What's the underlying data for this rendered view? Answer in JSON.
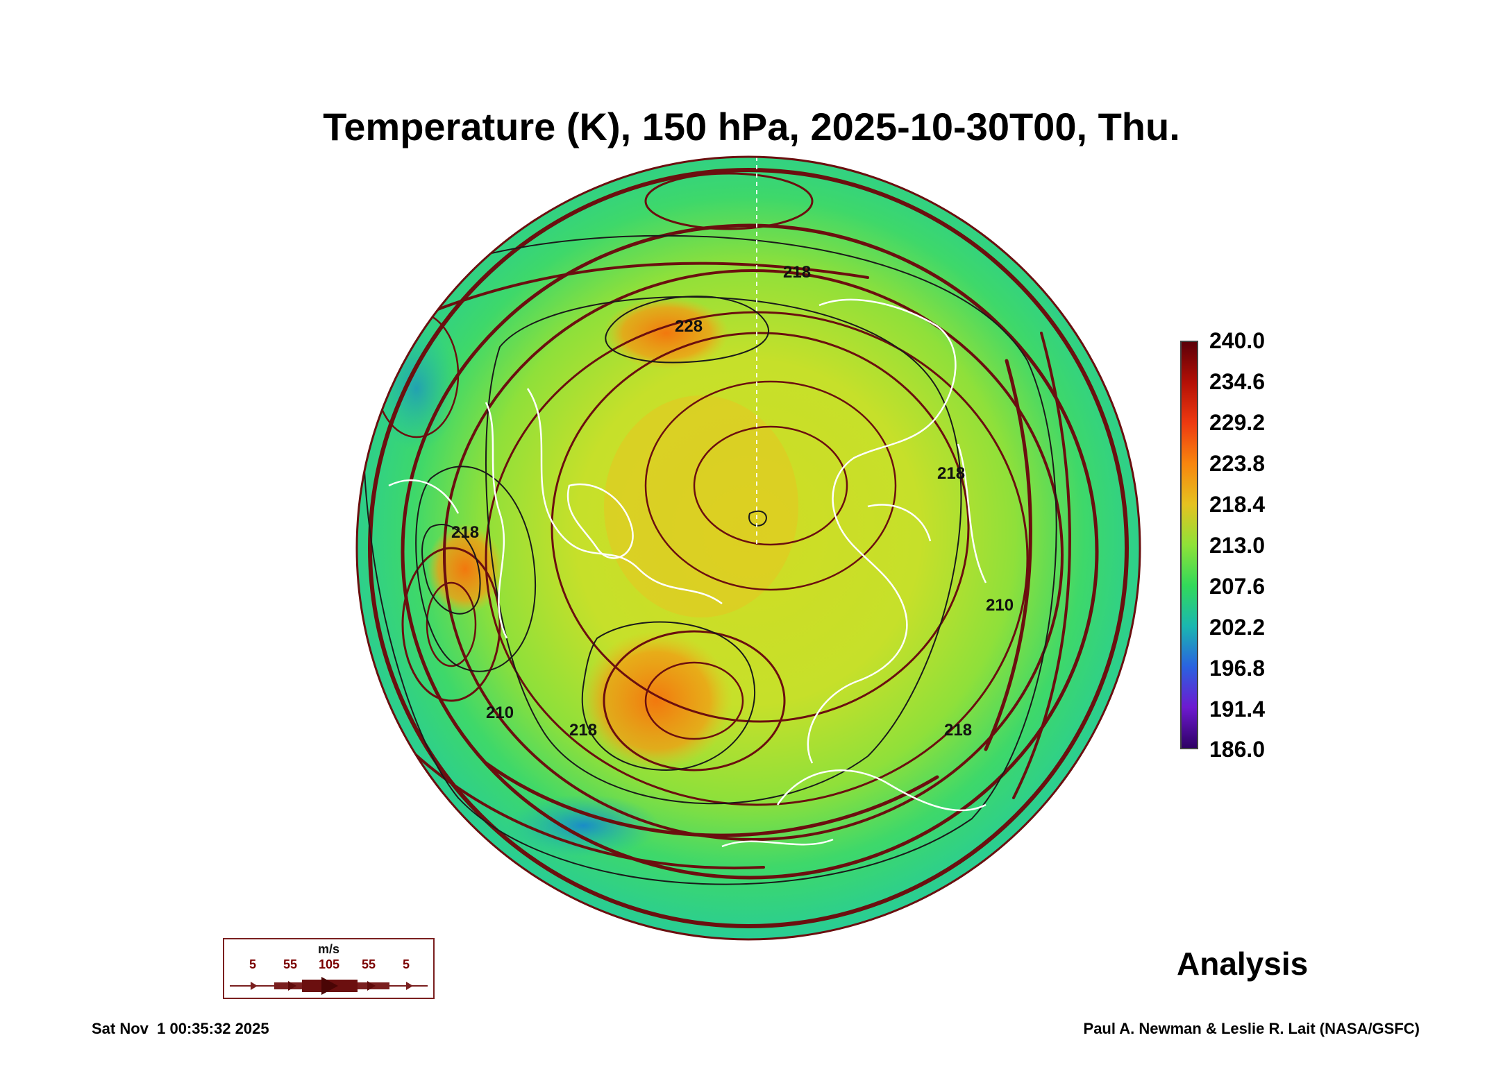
{
  "title": "Temperature (K), 150 hPa, 2025-10-30T00, Thu.",
  "colorbar": {
    "labels": [
      "240.0",
      "234.6",
      "229.2",
      "223.8",
      "218.4",
      "213.0",
      "207.6",
      "202.2",
      "196.8",
      "191.4",
      "186.0"
    ],
    "max": 240.0,
    "min": 186.0
  },
  "contour_labels": {
    "a": "218",
    "b": "228",
    "c": "218",
    "d": "210",
    "e": "218",
    "f": "210",
    "g": "218",
    "h": "218"
  },
  "wind_legend": {
    "unit": "m/s",
    "speeds": [
      "5",
      "55",
      "105",
      "55",
      "5"
    ]
  },
  "analysis_label": "Analysis",
  "footer": {
    "timestamp": "Sat Nov  1 00:35:32 2025",
    "credit": "Paul A. Newman & Leslie R. Lait (NASA/GSFC)"
  },
  "colors": {
    "streamline": "#6b0f0f",
    "coastline": "#ffffff",
    "contour": "#1a1a1a"
  }
}
